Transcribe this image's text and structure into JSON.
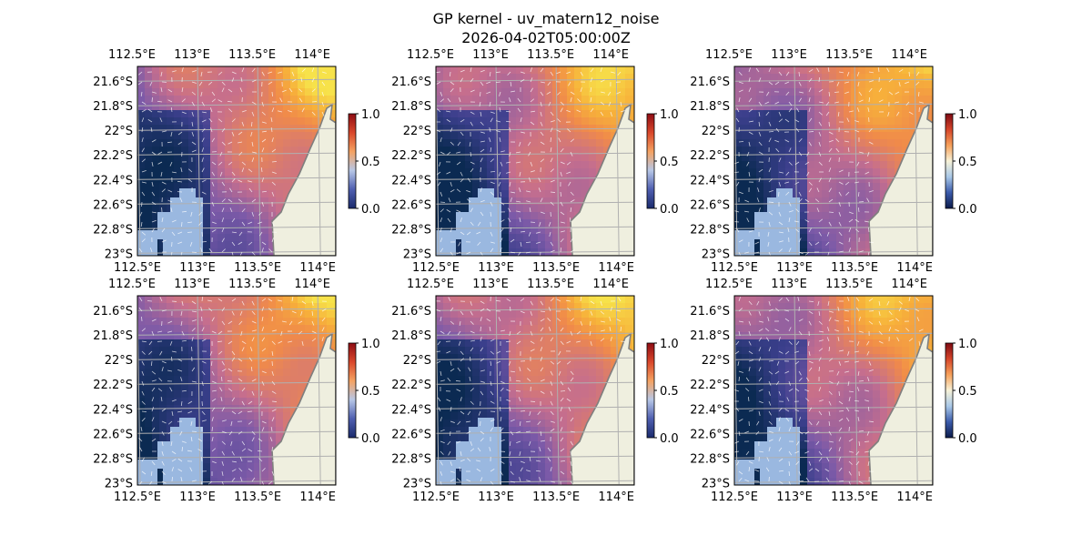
{
  "figure": {
    "title": "GP kernel - uv_matern12_noise",
    "subtitle": "2026-04-02T05:00:00Z"
  },
  "colors": {
    "ocean": "#9ab8e0",
    "land": "#efefdf",
    "coast": "#7f7f7f",
    "grid": "#b0b0b0",
    "arrow": "#ffffff",
    "colormap_a": [
      "#1a2a6c",
      "#4f5fb0",
      "#b7c7e6",
      "#f4a262",
      "#d9472b",
      "#8e0c13"
    ],
    "colormap_b": [
      "#0b1b4b",
      "#3b5bab",
      "#a9c8e8",
      "#f7f2d8",
      "#f6a05a",
      "#d5452a",
      "#7d0a13"
    ]
  },
  "chart_data": [
    {
      "type": "heatmap",
      "panel": "row1-col1",
      "x_ticks": [
        "112.5°E",
        "113°E",
        "113.5°E",
        "114°E"
      ],
      "y_ticks": [
        "21.6°S",
        "21.8°S",
        "22°S",
        "22.2°S",
        "22.4°S",
        "22.6°S",
        "22.8°S",
        "23°S"
      ],
      "x_values": [
        112.5,
        113.0,
        113.5,
        114.0
      ],
      "y_values": [
        -21.6,
        -21.8,
        -22.0,
        -22.2,
        -22.4,
        -22.6,
        -22.8,
        -23.0
      ],
      "xlim": [
        112.5,
        114.15
      ],
      "ylim": [
        -23.02,
        -21.48
      ],
      "colorbar": {
        "ticks": [
          "0.0",
          "0.5",
          "1.0"
        ],
        "range": [
          0.0,
          1.0
        ],
        "colormap": "colormap_a"
      },
      "overlay": "quiver",
      "grid": true
    },
    {
      "type": "heatmap",
      "panel": "row1-col2",
      "x_ticks": [
        "112.5°E",
        "113°E",
        "113.5°E",
        "114°E"
      ],
      "y_ticks": [
        "21.6°S",
        "21.8°S",
        "22°S",
        "22.2°S",
        "22.4°S",
        "22.6°S",
        "22.8°S",
        "23°S"
      ],
      "x_values": [
        112.5,
        113.0,
        113.5,
        114.0
      ],
      "y_values": [
        -21.6,
        -21.8,
        -22.0,
        -22.2,
        -22.4,
        -22.6,
        -22.8,
        -23.0
      ],
      "xlim": [
        112.5,
        114.15
      ],
      "ylim": [
        -23.02,
        -21.48
      ],
      "colorbar": {
        "ticks": [
          "0.0",
          "0.5",
          "1.0"
        ],
        "range": [
          0.0,
          1.0
        ],
        "colormap": "colormap_a"
      },
      "overlay": "quiver",
      "grid": true
    },
    {
      "type": "heatmap",
      "panel": "row1-col3",
      "x_ticks": [
        "112.5°E",
        "113°E",
        "113.5°E",
        "114°E"
      ],
      "y_ticks": [
        "21.6°S",
        "21.8°S",
        "22°S",
        "22.2°S",
        "22.4°S",
        "22.6°S",
        "22.8°S",
        "23°S"
      ],
      "x_values": [
        112.5,
        113.0,
        113.5,
        114.0
      ],
      "y_values": [
        -21.6,
        -21.8,
        -22.0,
        -22.2,
        -22.4,
        -22.6,
        -22.8,
        -23.0
      ],
      "xlim": [
        112.5,
        114.15
      ],
      "ylim": [
        -23.02,
        -21.48
      ],
      "colorbar": {
        "ticks": [
          "0.0",
          "0.5",
          "1.0"
        ],
        "range": [
          0.0,
          1.0
        ],
        "colormap": "colormap_b"
      },
      "overlay": "quiver",
      "grid": true
    },
    {
      "type": "heatmap",
      "panel": "row2-col1",
      "x_ticks": [
        "112.5°E",
        "113°E",
        "113.5°E",
        "114°E"
      ],
      "y_ticks": [
        "21.6°S",
        "21.8°S",
        "22°S",
        "22.2°S",
        "22.4°S",
        "22.6°S",
        "22.8°S",
        "23°S"
      ],
      "x_values": [
        112.5,
        113.0,
        113.5,
        114.0
      ],
      "y_values": [
        -21.6,
        -21.8,
        -22.0,
        -22.2,
        -22.4,
        -22.6,
        -22.8,
        -23.0
      ],
      "xlim": [
        112.5,
        114.15
      ],
      "ylim": [
        -23.02,
        -21.48
      ],
      "colorbar": {
        "ticks": [
          "0.0",
          "0.5",
          "1.0"
        ],
        "range": [
          0.0,
          1.0
        ],
        "colormap": "colormap_a"
      },
      "overlay": "quiver",
      "grid": true
    },
    {
      "type": "heatmap",
      "panel": "row2-col2",
      "x_ticks": [
        "112.5°E",
        "113°E",
        "113.5°E",
        "114°E"
      ],
      "y_ticks": [
        "21.6°S",
        "21.8°S",
        "22°S",
        "22.2°S",
        "22.4°S",
        "22.6°S",
        "22.8°S",
        "23°S"
      ],
      "x_values": [
        112.5,
        113.0,
        113.5,
        114.0
      ],
      "y_values": [
        -21.6,
        -21.8,
        -22.0,
        -22.2,
        -22.4,
        -22.6,
        -22.8,
        -23.0
      ],
      "xlim": [
        112.5,
        114.15
      ],
      "ylim": [
        -23.02,
        -21.48
      ],
      "colorbar": {
        "ticks": [
          "0.0",
          "0.5",
          "1.0"
        ],
        "range": [
          0.0,
          1.0
        ],
        "colormap": "colormap_a"
      },
      "overlay": "quiver",
      "grid": true
    },
    {
      "type": "heatmap",
      "panel": "row2-col3",
      "x_ticks": [
        "112.5°E",
        "113°E",
        "113.5°E",
        "114°E"
      ],
      "y_ticks": [
        "21.6°S",
        "21.8°S",
        "22°S",
        "22.2°S",
        "22.4°S",
        "22.6°S",
        "22.8°S",
        "23°S"
      ],
      "x_values": [
        112.5,
        113.0,
        113.5,
        114.0
      ],
      "y_values": [
        -21.6,
        -21.8,
        -22.0,
        -22.2,
        -22.4,
        -22.6,
        -22.8,
        -23.0
      ],
      "xlim": [
        112.5,
        114.15
      ],
      "ylim": [
        -23.02,
        -21.48
      ],
      "colorbar": {
        "ticks": [
          "0.0",
          "0.5",
          "1.0"
        ],
        "range": [
          0.0,
          1.0
        ],
        "colormap": "colormap_b"
      },
      "overlay": "quiver",
      "grid": true
    }
  ]
}
